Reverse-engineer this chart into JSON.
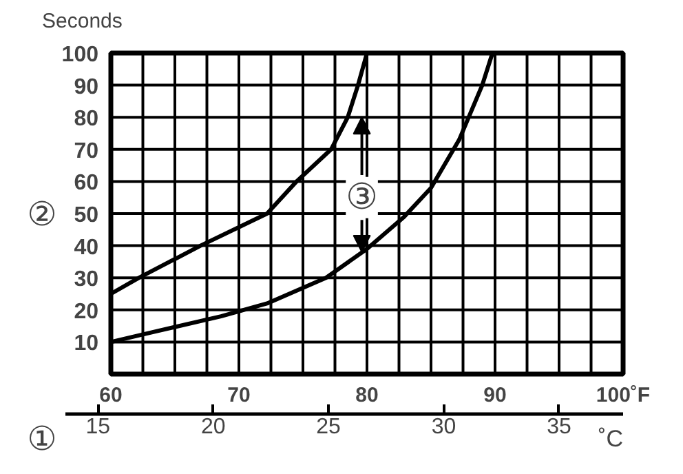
{
  "chart_data": {
    "type": "line",
    "ylabel": "Seconds",
    "xlim": [
      60,
      100
    ],
    "xticks": [
      60,
      {
        "value": 62.5,
        "label": null
      },
      {
        "value": 65,
        "label": null
      },
      {
        "value": 67.5,
        "label": null
      },
      70,
      {
        "value": 72.5,
        "label": null
      },
      {
        "value": 75,
        "label": null
      },
      {
        "value": 77.5,
        "label": null
      },
      80,
      {
        "value": 82.5,
        "label": null
      },
      {
        "value": 85,
        "label": null
      },
      {
        "value": 87.5,
        "label": null
      },
      90,
      {
        "value": 92.5,
        "label": null
      },
      {
        "value": 95,
        "label": null
      },
      {
        "value": 97.5,
        "label": null
      },
      {
        "value": 100,
        "label": "100˚F"
      }
    ],
    "x2lim": [
      13.6,
      37.78
    ],
    "x2ticks": [
      15,
      20,
      25,
      30,
      35
    ],
    "x2label": "˚C",
    "ylim": [
      0,
      100
    ],
    "yticks": [
      10,
      20,
      30,
      40,
      50,
      60,
      70,
      80,
      90,
      100
    ],
    "grid": true,
    "marker": "none",
    "line_style": "solid",
    "annotations": [
      "①",
      "②",
      "③"
    ],
    "series": [
      {
        "color": "#000000",
        "x": [
          60,
          62.2,
          67,
          72.2,
          74.5,
          77.2,
          78.5,
          79.3,
          80
        ],
        "values": [
          25,
          30,
          40,
          50,
          60,
          70,
          80,
          90,
          100
        ]
      },
      {
        "color": "#000000",
        "x": [
          60,
          63.2,
          68.6,
          72.2,
          76.8,
          80,
          82.9,
          85,
          87.2,
          89,
          89.8
        ],
        "values": [
          10,
          13,
          18,
          22,
          30,
          39,
          49,
          58,
          73,
          90,
          100
        ]
      }
    ]
  }
}
